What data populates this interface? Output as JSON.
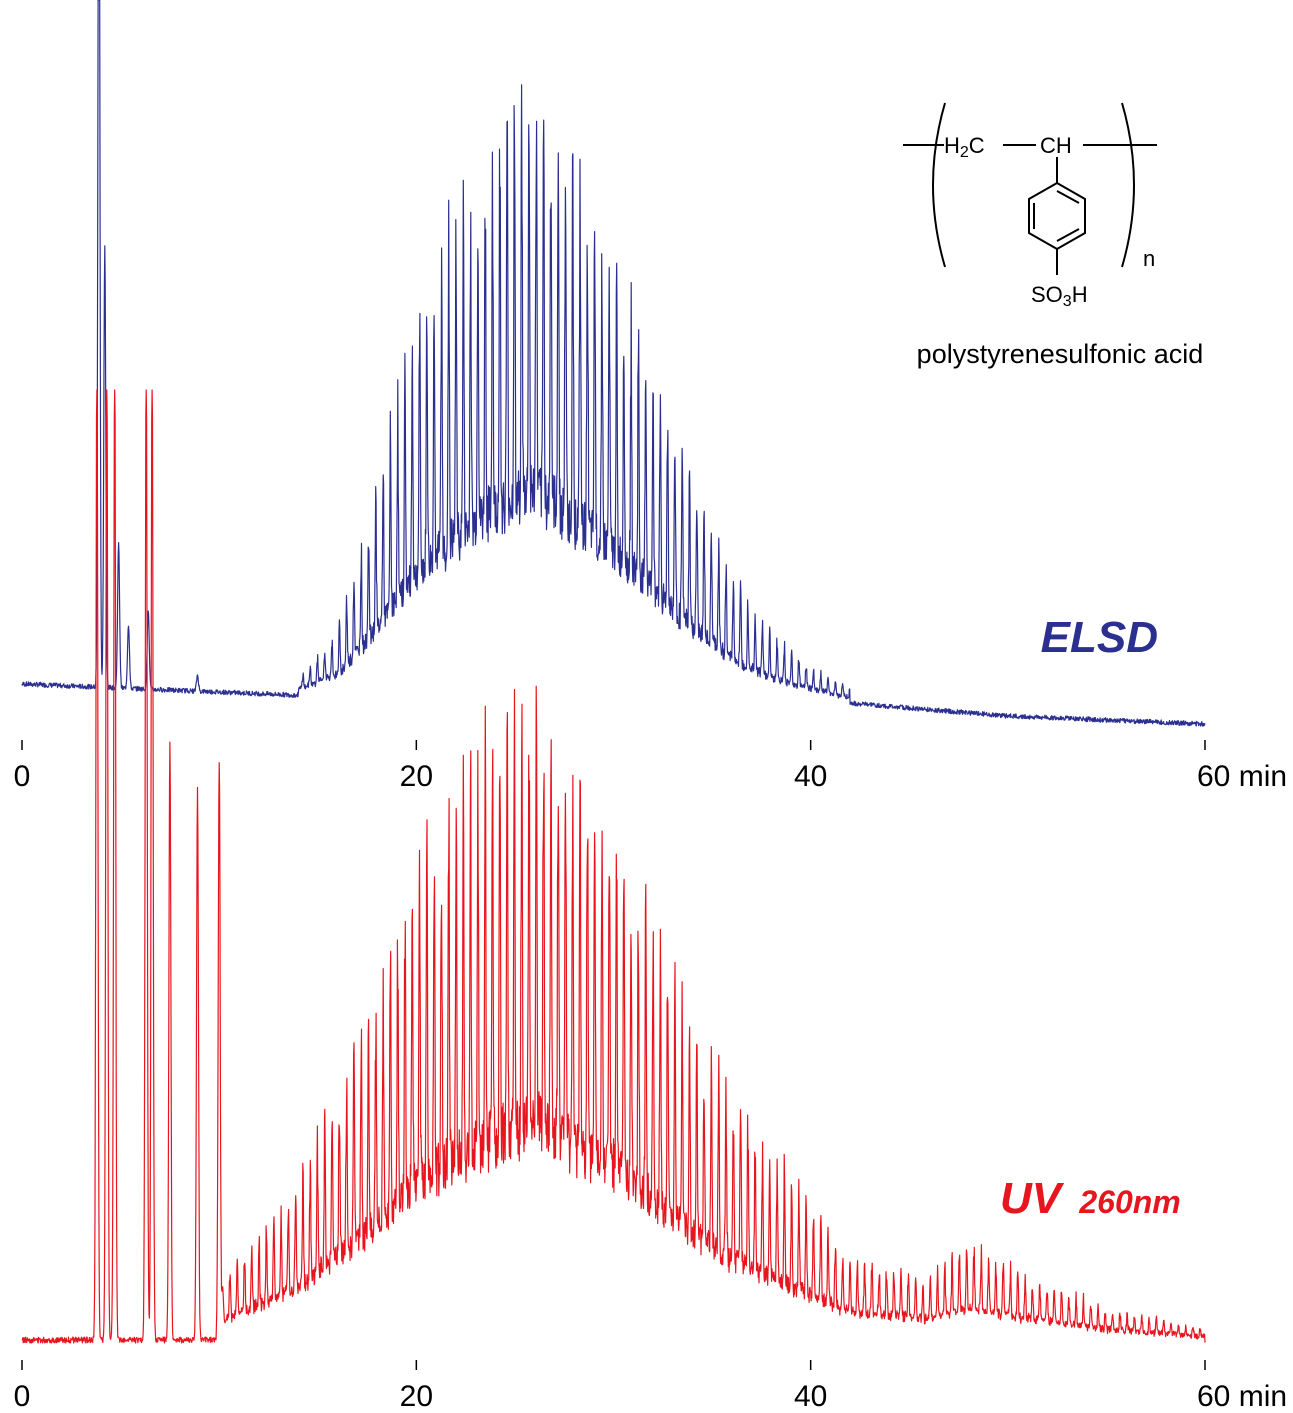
{
  "chart_data": [
    {
      "type": "line",
      "title": "",
      "xlabel": "",
      "ylabel": "",
      "x_unit": "min",
      "xlim": [
        0,
        60
      ],
      "x_ticks": [
        0,
        20,
        40,
        60
      ],
      "tick_labels": [
        "0",
        "20",
        "40",
        "60 min"
      ],
      "grid": false,
      "series": [
        {
          "name": "ELSD",
          "color": "#2b2f8f",
          "description_of_shape": "oligomer ladder of sharp peaks",
          "baseline": [
            [
              0,
              0.02
            ],
            [
              10,
              0.01
            ],
            [
              20,
              0.0
            ],
            [
              40,
              0.0
            ],
            [
              45,
              -0.01
            ],
            [
              50,
              -0.02
            ],
            [
              60,
              -0.03
            ]
          ],
          "envelope": [
            [
              14,
              0.02
            ],
            [
              16,
              0.08
            ],
            [
              18,
              0.25
            ],
            [
              20,
              0.45
            ],
            [
              22,
              0.58
            ],
            [
              24,
              0.68
            ],
            [
              26,
              0.75
            ],
            [
              28,
              0.64
            ],
            [
              30,
              0.53
            ],
            [
              32,
              0.4
            ],
            [
              34,
              0.26
            ],
            [
              36,
              0.15
            ],
            [
              38,
              0.08
            ],
            [
              40,
              0.04
            ],
            [
              42,
              0.02
            ]
          ],
          "peak_spacing_min": 0.37,
          "injection_peaks": [
            [
              3.9,
              1.2
            ],
            [
              4.2,
              0.55
            ],
            [
              4.9,
              0.18
            ],
            [
              5.4,
              0.08
            ],
            [
              6.4,
              0.1
            ],
            [
              8.9,
              0.02
            ]
          ],
          "label": "ELSD"
        },
        {
          "name": "UV 260nm",
          "color": "#e8141e",
          "description_of_shape": "oligomer ladder superimposed on broad hump",
          "baseline": [
            [
              0,
              0.0
            ],
            [
              3.7,
              0.0
            ]
          ],
          "envelope": [
            [
              10,
              0.05
            ],
            [
              14,
              0.15
            ],
            [
              18,
              0.33
            ],
            [
              20,
              0.45
            ],
            [
              22,
              0.52
            ],
            [
              24,
              0.58
            ],
            [
              26,
              0.62
            ],
            [
              28,
              0.55
            ],
            [
              30,
              0.5
            ],
            [
              32,
              0.4
            ],
            [
              34,
              0.3
            ],
            [
              36,
              0.23
            ],
            [
              38,
              0.18
            ],
            [
              40,
              0.13
            ],
            [
              42,
              0.08
            ],
            [
              46,
              0.06
            ],
            [
              48,
              0.09
            ],
            [
              50,
              0.07
            ],
            [
              55,
              0.03
            ],
            [
              60,
              0.01
            ]
          ],
          "peak_spacing_min": 0.37,
          "injection_peaks": [
            [
              3.8,
              1.0
            ],
            [
              4.3,
              1.0
            ],
            [
              4.7,
              1.0
            ],
            [
              6.3,
              1.0
            ],
            [
              6.6,
              1.0
            ],
            [
              7.5,
              0.6
            ],
            [
              8.9,
              0.55
            ],
            [
              10.0,
              0.58
            ]
          ],
          "label_main": "UV",
          "label_sub": "260nm"
        }
      ]
    }
  ],
  "structure": {
    "fragment_ch2": "H2C",
    "fragment_ch": "CH",
    "fragment_so3h": "SO3H",
    "repeat_subscript": "n",
    "caption": "polystyrenesulfonic acid"
  },
  "labels": {
    "elsd": "ELSD",
    "uv_main": "UV",
    "uv_sub": "260nm"
  }
}
